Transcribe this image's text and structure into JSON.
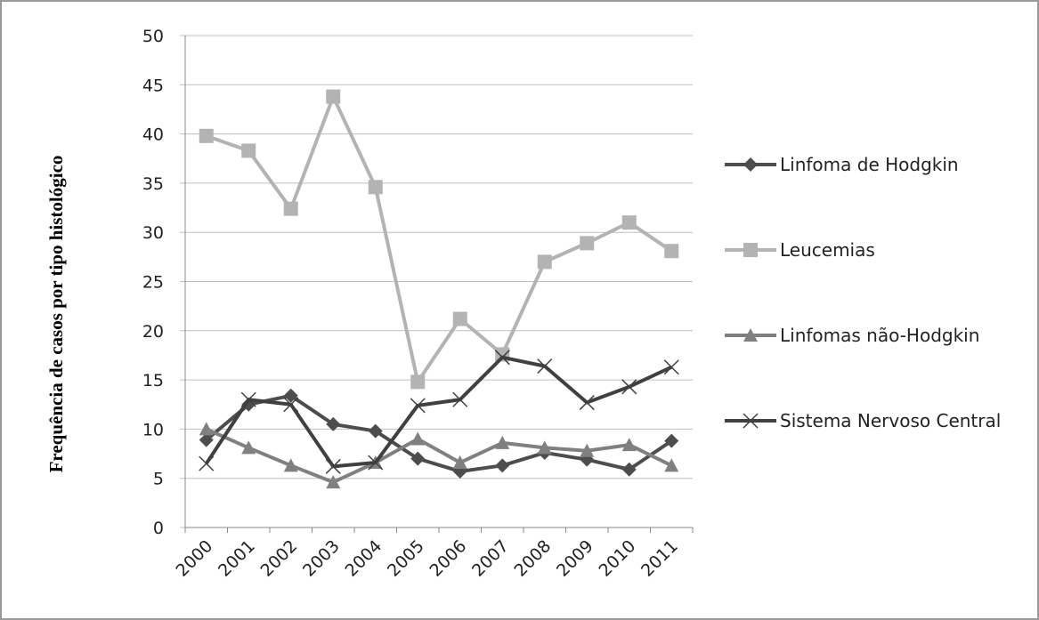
{
  "chart_data": {
    "type": "line",
    "y_label": "Frequência de casos por tipo histológico",
    "categories": [
      "2000",
      "2001",
      "2002",
      "2003",
      "2004",
      "2005",
      "2006",
      "2007",
      "2008",
      "2009",
      "2010",
      "2011"
    ],
    "series": [
      {
        "name": "Linfoma de Hodgkin",
        "color": "#4d4d4d",
        "marker": "diamond",
        "values": [
          8.9,
          12.5,
          13.4,
          10.5,
          9.8,
          7.0,
          5.7,
          6.3,
          7.6,
          6.9,
          5.9,
          8.8
        ]
      },
      {
        "name": "Leucemias",
        "color": "#b3b3b3",
        "marker": "square",
        "values": [
          39.8,
          38.3,
          32.4,
          43.8,
          34.6,
          14.8,
          21.2,
          17.6,
          27.0,
          28.9,
          31.0,
          28.1
        ]
      },
      {
        "name": "Linfomas não-Hodgkin",
        "color": "#808080",
        "marker": "triangle",
        "values": [
          10.0,
          8.1,
          6.3,
          4.6,
          6.6,
          9.0,
          6.6,
          8.6,
          8.1,
          7.8,
          8.4,
          6.3
        ]
      },
      {
        "name": "Sistema Nervoso Central",
        "color": "#404040",
        "marker": "x",
        "values": [
          6.5,
          13.0,
          12.5,
          6.2,
          6.6,
          12.4,
          13.0,
          17.3,
          16.4,
          12.7,
          14.3,
          16.3
        ]
      }
    ],
    "ylim": [
      0,
      50
    ],
    "yticks": [
      0,
      5,
      10,
      15,
      20,
      25,
      30,
      35,
      40,
      45,
      50
    ],
    "grid": true,
    "legend": "right"
  }
}
